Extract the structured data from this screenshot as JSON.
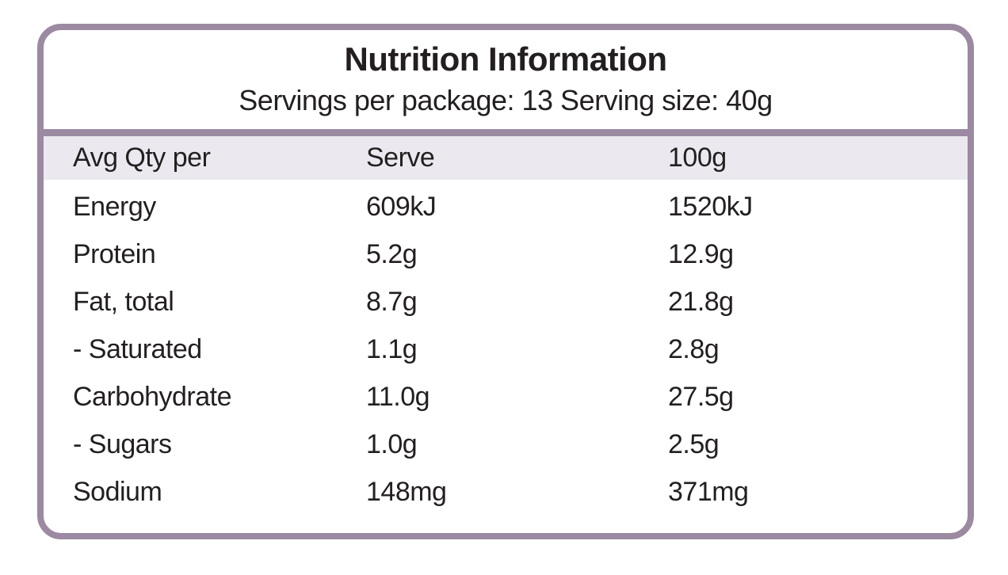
{
  "panel": {
    "title": "Nutrition Information",
    "servings_line": "Servings per package: 13 Serving size: 40g"
  },
  "table": {
    "header": [
      "Avg Qty per",
      "Serve",
      "100g"
    ],
    "rows": [
      [
        "Energy",
        "609kJ",
        "1520kJ"
      ],
      [
        "Protein",
        "5.2g",
        "12.9g"
      ],
      [
        "Fat, total",
        "8.7g",
        "21.8g"
      ],
      [
        "- Saturated",
        "1.1g",
        "2.8g"
      ],
      [
        "Carbohydrate",
        "11.0g",
        "27.5g"
      ],
      [
        "- Sugars",
        "1.0g",
        "2.5g"
      ],
      [
        "Sodium",
        "148mg",
        "371mg"
      ]
    ]
  },
  "colors": {
    "border": "#9b8aa2",
    "header_row_bg": "#ebe9ef",
    "text": "#231f20",
    "background": "#ffffff"
  }
}
